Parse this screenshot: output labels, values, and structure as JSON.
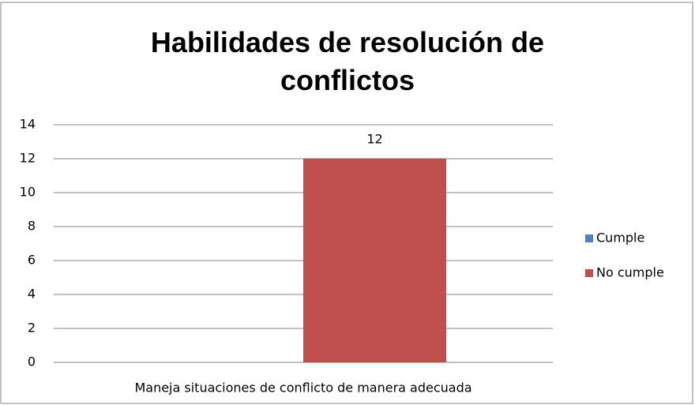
{
  "chart_data": {
    "type": "bar",
    "title": "Habilidades de resolución de conflictos",
    "categories": [
      "Maneja situaciones de conflicto de manera adecuada"
    ],
    "series": [
      {
        "name": "Cumple",
        "color": "#4f81bd",
        "values": [
          0
        ]
      },
      {
        "name": "No cumple",
        "color": "#c0504d",
        "values": [
          12
        ]
      }
    ],
    "ylim": [
      0,
      14
    ],
    "yticks": [
      0,
      2,
      4,
      6,
      8,
      10,
      12,
      14
    ],
    "grid": true,
    "legend": "right"
  }
}
